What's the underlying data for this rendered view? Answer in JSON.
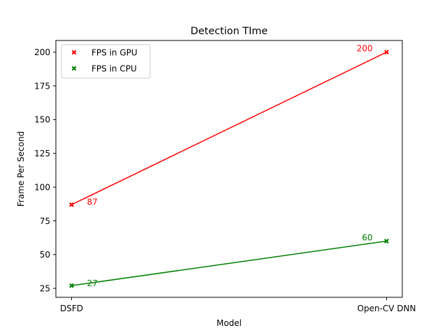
{
  "chart_data": {
    "type": "line",
    "title": "Detection TIme",
    "xlabel": "Model",
    "ylabel": "Frame Per Second",
    "categories": [
      "DSFD",
      "Open-CV DNN"
    ],
    "series": [
      {
        "name": "FPS in GPU",
        "values": [
          87,
          200
        ],
        "labels": [
          "87",
          "200"
        ],
        "color": "#ff0000",
        "marker": "x-filled"
      },
      {
        "name": "FPS in CPU",
        "values": [
          27,
          60
        ],
        "labels": [
          "27",
          "60"
        ],
        "color": "#008000",
        "marker": "x-filled"
      }
    ],
    "yticks": [
      25,
      50,
      75,
      100,
      125,
      150,
      175,
      200
    ],
    "ylim": [
      18.35,
      208.65
    ],
    "legend_position": "upper-left",
    "grid": false
  }
}
